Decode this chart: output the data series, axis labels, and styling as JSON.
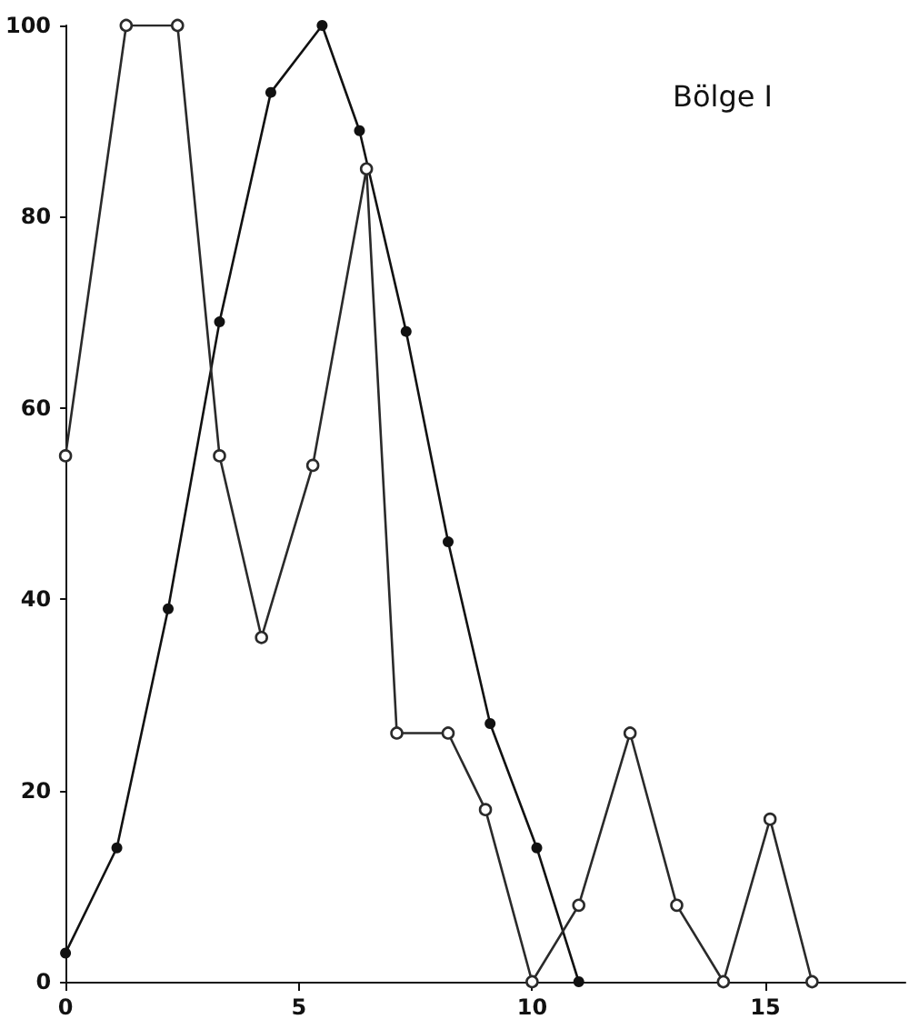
{
  "chart_data": {
    "type": "line",
    "title": "Bölge I",
    "series": [
      {
        "color": "#111111",
        "x": [
          0,
          1.1,
          2.2,
          3.3,
          4.4,
          5.5,
          6.3,
          7.3,
          8.2,
          9.1,
          10.1,
          11
        ],
        "values": [
          3,
          14,
          39,
          69,
          93,
          100,
          89,
          68,
          46,
          27,
          14,
          0
        ]
      },
      {
        "color": "#2a2a2a",
        "x": [
          0,
          1.3,
          2.4,
          3.3,
          4.2,
          5.3,
          6.45,
          7.1,
          8.2,
          9,
          10,
          11,
          12.1,
          13.1,
          14.1,
          15.1,
          16
        ],
        "values": [
          55,
          100,
          100,
          55,
          36,
          54,
          85,
          26,
          26,
          18,
          0,
          8,
          26,
          8,
          0,
          17,
          0
        ]
      }
    ],
    "xlim": [
      0,
      18
    ],
    "xticks": [
      0,
      5,
      10,
      15
    ],
    "ylim": [
      0,
      100
    ],
    "yticks": [
      0,
      20,
      40,
      60,
      80,
      100
    ],
    "grid": false,
    "marker": "circle",
    "line_style": "solid"
  }
}
